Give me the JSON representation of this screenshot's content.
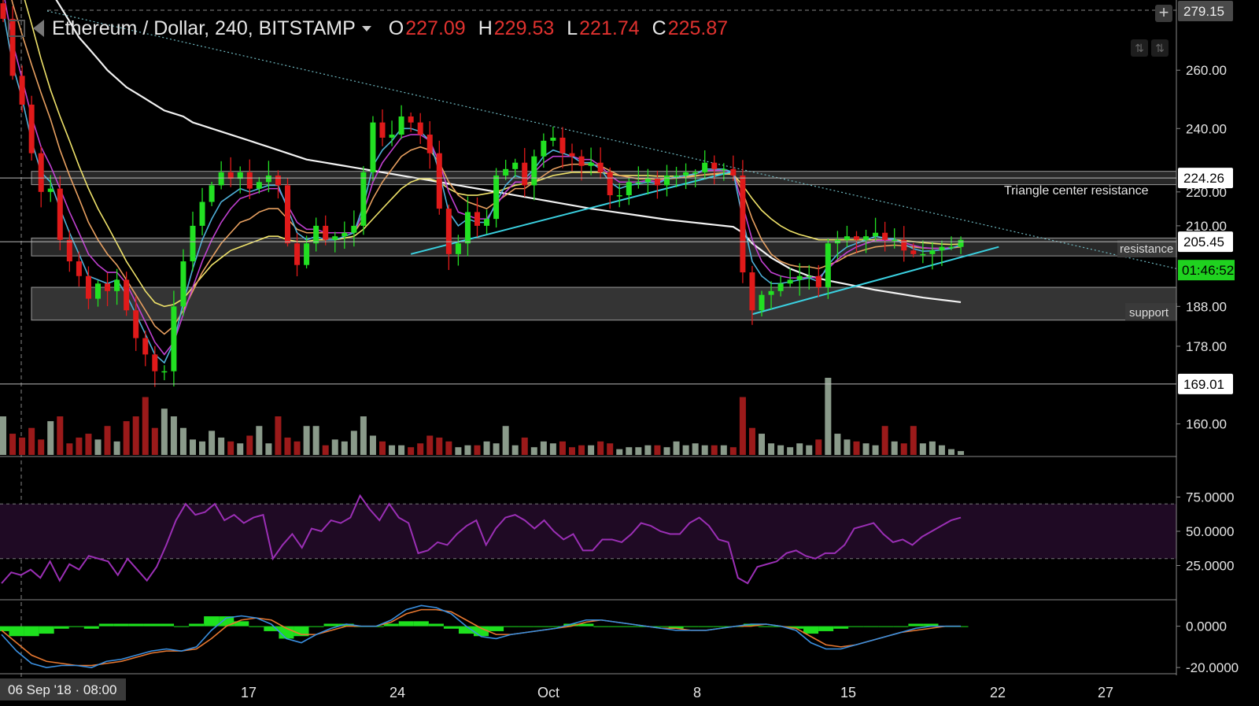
{
  "header": {
    "title": "Ethereum / Dollar, 240, BITSTAMP",
    "o_label": "O",
    "o_value": "227.09",
    "h_label": "H",
    "h_value": "229.53",
    "l_label": "L",
    "l_value": "221.74",
    "c_label": "C",
    "c_value": "225.87"
  },
  "icons": {
    "layout": "layout-icon",
    "symbol": "flag-icon",
    "dropdown": "chevron-down-icon",
    "crosshair": "crosshair-icon",
    "scroll_up": "arrow-up-icon",
    "scroll_down": "arrow-down-icon"
  },
  "colors": {
    "background": "#000000",
    "candle_up": "#22e022",
    "candle_down": "#e01a1a",
    "volume_up": "#8a9a8a",
    "volume_down": "#9b1a1a",
    "ma_white": "#f2f2f2",
    "ma_yellow": "#f0e36a",
    "ma_orange": "#e8a060",
    "ma_magenta": "#c040d0",
    "ma_cyan": "#4fb0d8",
    "trendline": "#3ad0e0",
    "rsi_line": "#9b2fb5",
    "rsi_band": "#1f0a24",
    "macd_line": "#3a8fe0",
    "signal_line": "#e87830",
    "macd_hist": "#1ee01e",
    "countdown_bg": "#1fd21f"
  },
  "chart_data": [
    {
      "type": "candlestick",
      "title": "Ethereum / Dollar, 240, BITSTAMP",
      "x_ticks": [
        "17",
        "24",
        "Oct",
        "8",
        "15",
        "22",
        "27"
      ],
      "x_cursor_label": "06 Sep '18 · 08:00",
      "y_ticks": [
        "260.00",
        "240.00",
        "220.00",
        "210.00",
        "188.00",
        "178.00",
        "160.00"
      ],
      "y_scale": "log",
      "ylim": [
        155,
        282
      ],
      "price_tags": [
        {
          "value": "279.15",
          "style": "grey"
        },
        {
          "value": "224.26",
          "style": "white"
        },
        {
          "value": "205.45",
          "style": "white"
        },
        {
          "value": "169.01",
          "style": "white"
        }
      ],
      "countdown": "01:46:52",
      "annotations": [
        {
          "text": "Triangle center resistance"
        },
        {
          "text": "resistance"
        },
        {
          "text": "support"
        }
      ],
      "zones": [
        {
          "name": "resistance",
          "from": 201.5,
          "to": 206.5
        },
        {
          "name": "support",
          "from": 184.5,
          "to": 193
        },
        {
          "name": "triangle-center",
          "from": 222.2,
          "to": 226.3
        }
      ],
      "closes": [
        279,
        258,
        248,
        232,
        220,
        221,
        206,
        200,
        196,
        190,
        194,
        192,
        195,
        187,
        180,
        176,
        172,
        172,
        188,
        200,
        210,
        217,
        222,
        226,
        224,
        226,
        221,
        223,
        225,
        222,
        205,
        199,
        205,
        210,
        206,
        207,
        208,
        210,
        226,
        242,
        237,
        238,
        244,
        242,
        238,
        232,
        215,
        202,
        205,
        214,
        210,
        212,
        225,
        227,
        229,
        222,
        231,
        236,
        237,
        232,
        231,
        228,
        229,
        226,
        219,
        219,
        223,
        223,
        224,
        222,
        225,
        225,
        226,
        226,
        229,
        227,
        227,
        225,
        197,
        187,
        191,
        192,
        194,
        195,
        196,
        196,
        193,
        205,
        206,
        207,
        206,
        207,
        208,
        206,
        206,
        203,
        202,
        202,
        203,
        204,
        204,
        206
      ],
      "volume": [
        40,
        22,
        18,
        28,
        16,
        35,
        40,
        12,
        18,
        22,
        16,
        30,
        14,
        35,
        40,
        60,
        28,
        48,
        40,
        28,
        16,
        14,
        25,
        18,
        14,
        12,
        20,
        30,
        12,
        40,
        18,
        14,
        30,
        30,
        10,
        16,
        14,
        25,
        40,
        20,
        14,
        10,
        10,
        8,
        12,
        20,
        18,
        14,
        8,
        10,
        10,
        14,
        12,
        30,
        10,
        18,
        8,
        14,
        12,
        14,
        8,
        10,
        10,
        14,
        12,
        6,
        8,
        8,
        10,
        10,
        8,
        14,
        10,
        12,
        10,
        10,
        10,
        8,
        60,
        28,
        22,
        12,
        10,
        8,
        12,
        10,
        16,
        80,
        22,
        16,
        14,
        12,
        10,
        30,
        14,
        12,
        30,
        12,
        14,
        10,
        6,
        4
      ],
      "ma": [
        {
          "color": "white",
          "values": [
            330,
            320,
            312,
            304,
            296,
            290,
            284,
            278,
            272,
            268,
            264,
            260,
            257,
            254,
            252,
            250,
            248,
            246,
            245,
            244,
            242,
            241,
            240,
            239,
            238,
            237,
            236,
            235,
            234,
            233,
            232,
            231,
            230,
            229.5,
            229,
            228.5,
            228,
            227.5,
            227,
            226.5,
            226,
            225.5,
            225,
            224.5,
            224,
            223.5,
            223,
            222.5,
            222,
            221.5,
            221,
            220.5,
            220,
            219.5,
            219,
            218.5,
            218,
            217.5,
            217,
            216.5,
            216,
            215.5,
            215,
            214.6,
            214.2,
            213.8,
            213.4,
            213,
            212.6,
            212.2,
            211.8,
            211.5,
            211.2,
            210.9,
            210.6,
            210.3,
            210,
            209.7,
            208,
            205,
            203,
            201,
            199.5,
            198,
            197,
            196,
            195.4,
            194.8,
            194.3,
            193.8,
            193.3,
            192.8,
            192.3,
            191.9,
            191.5,
            191.1,
            190.7,
            190.3,
            190,
            189.7,
            189.4,
            189.1
          ]
        },
        {
          "color": "yellow",
          "values": [
            330,
            305,
            290,
            277,
            264,
            253,
            244,
            236,
            228,
            221,
            215,
            210,
            205,
            200,
            196,
            192,
            189,
            188,
            188.5,
            190,
            193,
            196,
            199,
            201,
            203,
            204,
            205,
            206,
            207,
            207,
            206,
            205.5,
            205.5,
            206,
            206,
            206,
            206.5,
            207,
            209,
            212,
            215,
            218,
            221,
            223,
            224,
            224,
            223,
            221,
            219.5,
            219,
            219,
            219.5,
            220,
            221,
            222,
            222.5,
            223,
            224,
            225,
            225.5,
            226,
            226,
            226,
            226,
            225.5,
            225,
            225,
            225,
            225,
            224.8,
            224.8,
            224.8,
            224.9,
            225,
            225.2,
            225.4,
            225.5,
            225.4,
            222,
            218,
            214.5,
            212,
            210,
            208.5,
            207.5,
            206.8,
            206,
            206,
            206,
            206,
            206,
            206,
            206,
            206,
            206,
            205.8,
            205.5,
            205.2,
            205,
            204.8,
            204.7,
            204.8
          ]
        },
        {
          "color": "orange",
          "values": [
            300,
            285,
            273,
            262,
            252,
            243,
            233,
            225,
            218,
            211,
            206,
            202,
            199,
            195,
            191,
            187,
            183,
            181,
            183,
            187,
            192,
            197,
            201,
            205,
            208,
            211,
            212,
            214,
            215,
            215,
            212,
            209,
            208,
            208,
            208,
            208,
            208,
            208,
            212,
            218,
            223,
            227,
            231,
            233,
            234,
            233,
            229,
            223,
            219,
            217,
            216,
            215,
            217,
            219,
            221,
            221,
            223,
            225,
            227,
            228,
            228.5,
            228.5,
            228.5,
            228,
            226.5,
            225,
            224.5,
            224,
            224,
            223.8,
            224,
            224.2,
            224.5,
            224.8,
            225.3,
            225.6,
            225.8,
            225.6,
            220,
            212,
            206,
            202,
            200,
            199,
            198.5,
            198.5,
            198,
            199,
            200,
            201.5,
            202.5,
            203.3,
            204,
            204.3,
            204.5,
            204.3,
            204,
            203.7,
            203.6,
            203.6,
            203.7,
            204
          ]
        },
        {
          "color": "magenta",
          "values": [
            290,
            270,
            257,
            244,
            234,
            228,
            221,
            214,
            208,
            202,
            199,
            197,
            197,
            194,
            189,
            184,
            179,
            176,
            179,
            186,
            193,
            200,
            206,
            211,
            215,
            218,
            219,
            220,
            221,
            221,
            216,
            211,
            209,
            209,
            208,
            208,
            208,
            208,
            214,
            223,
            229,
            233,
            237,
            238,
            238,
            236,
            229,
            220,
            214,
            213,
            212,
            212,
            216,
            220,
            223,
            223,
            226,
            229,
            231,
            231,
            231,
            230,
            230,
            228,
            225,
            223,
            223,
            223,
            223.5,
            223,
            224,
            224.5,
            225,
            225.5,
            226.5,
            226.6,
            226.6,
            226,
            216,
            206,
            200,
            197,
            196,
            195.5,
            195.5,
            195.7,
            195.5,
            198,
            200.5,
            202.5,
            204,
            205,
            205.8,
            205.9,
            205.9,
            205.2,
            204.4,
            203.8,
            203.6,
            203.6,
            203.8,
            204.4
          ]
        },
        {
          "color": "cyan",
          "values": [
            282,
            262,
            250,
            236,
            226,
            223,
            215,
            208,
            202,
            196,
            195,
            194,
            195,
            191,
            186,
            181,
            176,
            174,
            179,
            189,
            198,
            206,
            212,
            217,
            219,
            221,
            220,
            221,
            222,
            222,
            215,
            208,
            206,
            207,
            206,
            206,
            207,
            208,
            216,
            228,
            233,
            236,
            240,
            240,
            239,
            236,
            226,
            214,
            210,
            212,
            211,
            211,
            217,
            222,
            225,
            224,
            227,
            231,
            233,
            232,
            231,
            229,
            229,
            227,
            223,
            221,
            222,
            222.5,
            223,
            222.5,
            224,
            224.5,
            225,
            225.5,
            227,
            227,
            227,
            226,
            212,
            200,
            196,
            194,
            194,
            194.5,
            195,
            195.5,
            194.5,
            199,
            202,
            204,
            205,
            206,
            207,
            206.5,
            206.2,
            204.8,
            203.5,
            202.8,
            202.9,
            203.2,
            203.6,
            204.6
          ]
        }
      ]
    },
    {
      "type": "line",
      "name": "RSI",
      "y_ticks": [
        "75.0000",
        "50.0000",
        "25.0000"
      ],
      "ylim": [
        0,
        100
      ],
      "bands": [
        30,
        70
      ],
      "values": [
        12,
        20,
        18,
        22,
        16,
        28,
        14,
        26,
        22,
        32,
        30,
        28,
        18,
        30,
        22,
        14,
        24,
        40,
        58,
        70,
        62,
        64,
        70,
        58,
        62,
        56,
        60,
        62,
        30,
        40,
        48,
        38,
        52,
        50,
        58,
        56,
        60,
        76,
        66,
        58,
        70,
        60,
        56,
        34,
        36,
        42,
        40,
        48,
        54,
        58,
        40,
        52,
        60,
        62,
        58,
        52,
        58,
        50,
        44,
        48,
        36,
        36,
        44,
        44,
        42,
        48,
        56,
        54,
        50,
        48,
        48,
        56,
        60,
        54,
        44,
        42,
        16,
        12,
        24,
        26,
        28,
        34,
        36,
        32,
        30,
        34,
        34,
        40,
        52,
        54,
        56,
        48,
        42,
        44,
        40,
        46,
        50,
        54,
        58,
        60
      ]
    },
    {
      "type": "line",
      "name": "MACD",
      "y_ticks": [
        "0.0000",
        "-20.0000"
      ],
      "ylim": [
        -23,
        9
      ],
      "macd": [
        -4,
        -12,
        -18,
        -20,
        -19,
        -19,
        -20,
        -17,
        -16,
        -14,
        -12,
        -11,
        -12,
        -10,
        -2,
        4,
        5,
        4,
        1,
        -6,
        -8,
        -4,
        -1,
        1,
        0,
        0,
        3,
        8,
        10,
        9,
        6,
        0,
        -5,
        -6,
        -4,
        -3,
        -2,
        -1,
        1,
        3,
        3,
        2,
        1,
        0,
        -1,
        -2,
        -2,
        -2,
        -1,
        0,
        1,
        1,
        0,
        -2,
        -8,
        -11,
        -11,
        -9,
        -7,
        -5,
        -3,
        -1,
        0,
        0,
        0
      ],
      "signal": [
        -2,
        -8,
        -14,
        -17,
        -18,
        -19,
        -19,
        -18,
        -17,
        -15,
        -13,
        -12,
        -12,
        -11,
        -6,
        0,
        3,
        4,
        3,
        -1,
        -4,
        -4,
        -2,
        0,
        0,
        0,
        2,
        6,
        8,
        8,
        7,
        3,
        -1,
        -4,
        -4,
        -3,
        -2,
        -1,
        0,
        2,
        3,
        2,
        1,
        0,
        -1,
        -1,
        -2,
        -2,
        -1,
        0,
        0,
        1,
        0,
        -1,
        -5,
        -9,
        -10,
        -9,
        -7,
        -5,
        -3,
        -2,
        -1,
        0,
        0
      ]
    }
  ]
}
